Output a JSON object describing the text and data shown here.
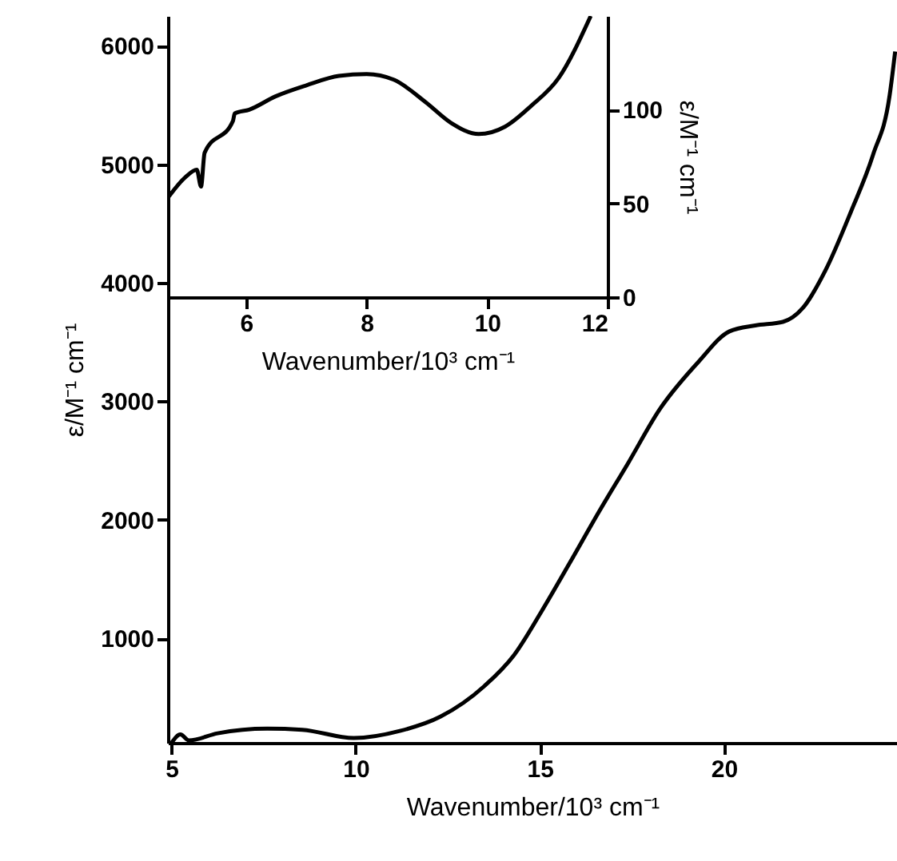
{
  "chart_data": [
    {
      "type": "line",
      "xlabel": "Wavenumber/10³ cm⁻¹",
      "ylabel": "ε/M⁻¹ cm⁻¹",
      "xlim": [
        4.9,
        24.7
      ],
      "xticks": [
        5,
        10,
        15,
        20
      ],
      "ylim": [
        120,
        6250
      ],
      "yticks": [
        1000,
        2000,
        3000,
        4000,
        5000,
        6000
      ],
      "grid": false,
      "line_style": "solid",
      "series": [
        {
          "color": "#000000",
          "x": [
            5.0,
            5.24,
            5.47,
            6.25,
            7.6,
            8.55,
            9.95,
            11.2,
            12.3,
            13.5,
            14.3,
            15.05,
            15.8,
            16.6,
            17.4,
            18.25,
            19.3,
            20.15,
            20.85,
            21.6,
            22.15,
            22.75,
            23.45,
            24.05,
            24.5,
            24.65
          ],
          "values": [
            120,
            190,
            140,
            200,
            240,
            230,
            160,
            220,
            340,
            600,
            860,
            1230,
            1630,
            2065,
            2480,
            2930,
            3330,
            3590,
            3640,
            3670,
            3790,
            4100,
            4600,
            5080,
            5580,
            5950
          ]
        }
      ]
    },
    {
      "type": "line",
      "xlabel": "Wavenumber/10³ cm⁻¹",
      "y2label": "ε/M⁻¹ cm⁻¹",
      "xlim": [
        4.7,
        12
      ],
      "xticks": [
        6,
        8,
        10,
        12
      ],
      "y2lim": [
        0,
        150
      ],
      "y2ticks": [
        0,
        50,
        100
      ],
      "grid": false,
      "line_style": "solid",
      "series": [
        {
          "color": "#000000",
          "axis": "y2",
          "x": [
            4.7,
            4.99,
            5.18,
            5.25,
            5.31,
            5.78,
            5.81,
            6.05,
            6.48,
            7.0,
            7.54,
            8.0,
            8.45,
            8.98,
            9.4,
            9.86,
            10.3,
            10.73,
            11.19,
            11.72
          ],
          "values": [
            53,
            64,
            68,
            59,
            77,
            94,
            98,
            100,
            107,
            113,
            118,
            119,
            116,
            104,
            93,
            87,
            91,
            102,
            117,
            150
          ]
        }
      ]
    }
  ]
}
